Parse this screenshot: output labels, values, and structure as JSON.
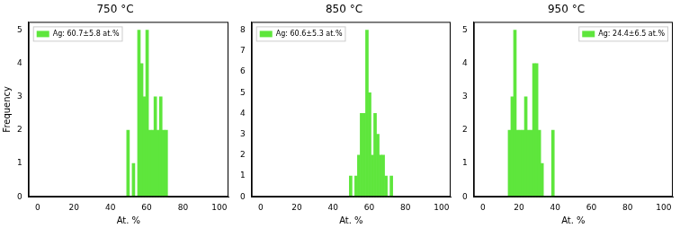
{
  "chart_data": [
    {
      "type": "histogram",
      "title": "750 °C",
      "x_label": "At. %",
      "y_label": "Frequency",
      "bins": [
        49,
        50.5,
        52,
        53.5,
        55,
        56.5,
        58,
        59.5,
        61,
        62.5,
        64,
        65.5,
        67,
        68.5,
        70,
        71.5
      ],
      "series": [
        {
          "name": "Ag: 60.7±5.8 at.%",
          "color": "#5ee63c",
          "values": [
            2,
            0,
            1,
            0,
            5,
            4,
            3,
            5,
            2,
            2,
            3,
            2,
            3,
            2,
            2
          ]
        }
      ],
      "xlim": [
        -5,
        105
      ],
      "xticks": [
        0,
        20,
        40,
        60,
        80,
        100
      ],
      "ylim": [
        0,
        5.25
      ],
      "yticks": [
        0,
        1,
        2,
        3,
        4,
        5
      ],
      "legend": "upper left",
      "grid": false
    },
    {
      "type": "histogram",
      "title": "850 °C",
      "x_label": "At. %",
      "bins": [
        49,
        50.5,
        52,
        53.5,
        55,
        56.5,
        58,
        59.5,
        61,
        62.5,
        64,
        65.5,
        67,
        68.5,
        70,
        71.5,
        73
      ],
      "series": [
        {
          "name": "Ag: 60.6±5.3 at.%",
          "color": "#5ee63c",
          "values": [
            1,
            0,
            1,
            2,
            4,
            4,
            8,
            5,
            2,
            4,
            3,
            2,
            2,
            1,
            0,
            1
          ]
        }
      ],
      "xlim": [
        -5,
        105
      ],
      "xticks": [
        0,
        20,
        40,
        60,
        80,
        100
      ],
      "ylim": [
        0,
        8.4
      ],
      "yticks": [
        0,
        1,
        2,
        3,
        4,
        5,
        6,
        7,
        8
      ],
      "legend": "upper left",
      "grid": false
    },
    {
      "type": "histogram",
      "title": "950 °C",
      "x_label": "At. %",
      "bins": [
        14,
        15.5,
        17,
        18.5,
        20,
        21.5,
        23,
        24.5,
        26,
        27.5,
        29,
        30.5,
        32,
        33.5,
        35,
        36.5,
        38,
        39.5
      ],
      "series": [
        {
          "name": "Ag: 24.4±6.5 at.%",
          "color": "#5ee63c",
          "values": [
            2,
            3,
            5,
            2,
            2,
            2,
            3,
            2,
            2,
            4,
            4,
            2,
            1,
            0,
            0,
            0,
            2
          ]
        }
      ],
      "xlim": [
        -5,
        105
      ],
      "xticks": [
        0,
        20,
        40,
        60,
        80,
        100
      ],
      "ylim": [
        0,
        5.25
      ],
      "yticks": [
        0,
        1,
        2,
        3,
        4,
        5
      ],
      "legend": "upper right",
      "grid": false
    }
  ]
}
